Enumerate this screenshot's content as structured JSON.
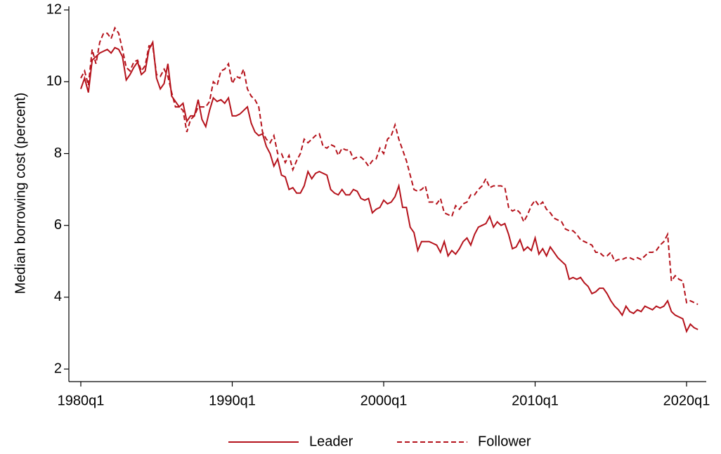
{
  "chart_data": {
    "type": "line",
    "y_label": "Median borrowing cost (percent)",
    "x": [
      "1980q1",
      "1980q2",
      "1980q3",
      "1980q4",
      "1981q1",
      "1981q2",
      "1981q3",
      "1981q4",
      "1982q1",
      "1982q2",
      "1982q3",
      "1982q4",
      "1983q1",
      "1983q2",
      "1983q3",
      "1983q4",
      "1984q1",
      "1984q2",
      "1984q3",
      "1984q4",
      "1985q1",
      "1985q2",
      "1985q3",
      "1985q4",
      "1986q1",
      "1986q2",
      "1986q3",
      "1986q4",
      "1987q1",
      "1987q2",
      "1987q3",
      "1987q4",
      "1988q1",
      "1988q2",
      "1988q3",
      "1988q4",
      "1989q1",
      "1989q2",
      "1989q3",
      "1989q4",
      "1990q1",
      "1990q2",
      "1990q3",
      "1990q4",
      "1991q1",
      "1991q2",
      "1991q3",
      "1991q4",
      "1992q1",
      "1992q2",
      "1992q3",
      "1992q4",
      "1993q1",
      "1993q2",
      "1993q3",
      "1993q4",
      "1994q1",
      "1994q2",
      "1994q3",
      "1994q4",
      "1995q1",
      "1995q2",
      "1995q3",
      "1995q4",
      "1996q1",
      "1996q2",
      "1996q3",
      "1996q4",
      "1997q1",
      "1997q2",
      "1997q3",
      "1997q4",
      "1998q1",
      "1998q2",
      "1998q3",
      "1998q4",
      "1999q1",
      "1999q2",
      "1999q3",
      "1999q4",
      "2000q1",
      "2000q2",
      "2000q3",
      "2000q4",
      "2001q1",
      "2001q2",
      "2001q3",
      "2001q4",
      "2002q1",
      "2002q2",
      "2002q3",
      "2002q4",
      "2003q1",
      "2003q2",
      "2003q3",
      "2003q4",
      "2004q1",
      "2004q2",
      "2004q3",
      "2004q4",
      "2005q1",
      "2005q2",
      "2005q3",
      "2005q4",
      "2006q1",
      "2006q2",
      "2006q3",
      "2006q4",
      "2007q1",
      "2007q2",
      "2007q3",
      "2007q4",
      "2008q1",
      "2008q2",
      "2008q3",
      "2008q4",
      "2009q1",
      "2009q2",
      "2009q3",
      "2009q4",
      "2010q1",
      "2010q2",
      "2010q3",
      "2010q4",
      "2011q1",
      "2011q2",
      "2011q3",
      "2011q4",
      "2012q1",
      "2012q2",
      "2012q3",
      "2012q4",
      "2013q1",
      "2013q2",
      "2013q3",
      "2013q4",
      "2014q1",
      "2014q2",
      "2014q3",
      "2014q4",
      "2015q1",
      "2015q2",
      "2015q3",
      "2015q4",
      "2016q1",
      "2016q2",
      "2016q3",
      "2016q4",
      "2017q1",
      "2017q2",
      "2017q3",
      "2017q4",
      "2018q1",
      "2018q2",
      "2018q3",
      "2018q4",
      "2019q1",
      "2019q2",
      "2019q3",
      "2019q4",
      "2020q1",
      "2020q2",
      "2020q3",
      "2020q4"
    ],
    "xticks": [
      "1980q1",
      "1990q1",
      "2000q1",
      "2010q1",
      "2020q1"
    ],
    "ylim": [
      1.65,
      12.1
    ],
    "yticks": [
      2,
      4,
      6,
      8,
      10,
      12
    ],
    "series": [
      {
        "name": "Leader",
        "color": "#b5121b",
        "dashed": false,
        "values": [
          9.8,
          10.1,
          9.7,
          10.6,
          10.7,
          10.8,
          10.85,
          10.9,
          10.8,
          10.95,
          10.9,
          10.7,
          10.05,
          10.2,
          10.4,
          10.55,
          10.2,
          10.3,
          10.9,
          11.1,
          10.1,
          9.8,
          9.95,
          10.5,
          9.6,
          9.45,
          9.3,
          9.4,
          8.9,
          9.05,
          9.05,
          9.5,
          8.95,
          8.75,
          9.2,
          9.55,
          9.45,
          9.5,
          9.4,
          9.55,
          9.05,
          9.05,
          9.1,
          9.2,
          9.3,
          8.85,
          8.6,
          8.5,
          8.55,
          8.2,
          8.0,
          7.65,
          7.85,
          7.4,
          7.35,
          7.0,
          7.05,
          6.9,
          6.9,
          7.1,
          7.5,
          7.3,
          7.45,
          7.5,
          7.45,
          7.4,
          7.0,
          6.9,
          6.85,
          7.0,
          6.85,
          6.85,
          7.0,
          6.95,
          6.75,
          6.7,
          6.75,
          6.35,
          6.45,
          6.5,
          6.7,
          6.6,
          6.65,
          6.8,
          7.1,
          6.5,
          6.5,
          5.95,
          5.8,
          5.3,
          5.55,
          5.55,
          5.55,
          5.5,
          5.45,
          5.25,
          5.55,
          5.15,
          5.3,
          5.2,
          5.35,
          5.55,
          5.65,
          5.45,
          5.75,
          5.95,
          6.0,
          6.05,
          6.25,
          5.95,
          6.1,
          6.0,
          6.05,
          5.75,
          5.35,
          5.4,
          5.6,
          5.3,
          5.4,
          5.3,
          5.65,
          5.2,
          5.35,
          5.15,
          5.4,
          5.25,
          5.1,
          5.0,
          4.9,
          4.5,
          4.55,
          4.5,
          4.55,
          4.4,
          4.3,
          4.1,
          4.15,
          4.25,
          4.25,
          4.1,
          3.9,
          3.75,
          3.65,
          3.5,
          3.75,
          3.6,
          3.55,
          3.65,
          3.6,
          3.75,
          3.7,
          3.65,
          3.75,
          3.7,
          3.75,
          3.9,
          3.6,
          3.5,
          3.45,
          3.4,
          3.05,
          3.25,
          3.15,
          3.1
        ]
      },
      {
        "name": "Follower",
        "color": "#b5121b",
        "dashed": true,
        "values": [
          10.1,
          10.3,
          9.9,
          10.9,
          10.5,
          11.1,
          11.35,
          11.35,
          11.2,
          11.5,
          11.35,
          10.9,
          10.4,
          10.3,
          10.55,
          10.6,
          10.3,
          10.45,
          11.0,
          11.0,
          10.2,
          10.15,
          10.35,
          10.15,
          9.7,
          9.3,
          9.3,
          9.2,
          8.6,
          8.95,
          9.05,
          9.3,
          9.3,
          9.3,
          9.45,
          10.0,
          9.9,
          10.3,
          10.35,
          10.5,
          9.95,
          10.15,
          10.1,
          10.35,
          9.8,
          9.6,
          9.5,
          9.3,
          8.6,
          8.4,
          8.3,
          8.5,
          8.0,
          8.0,
          7.75,
          7.95,
          7.55,
          7.8,
          8.0,
          8.4,
          8.3,
          8.4,
          8.5,
          8.55,
          8.2,
          8.15,
          8.25,
          8.2,
          7.95,
          8.15,
          8.1,
          8.1,
          7.85,
          7.9,
          7.9,
          7.8,
          7.65,
          7.8,
          7.85,
          8.15,
          8.0,
          8.4,
          8.5,
          8.8,
          8.4,
          8.1,
          7.8,
          7.4,
          7.0,
          6.95,
          7.0,
          7.1,
          6.65,
          6.65,
          6.6,
          6.75,
          6.35,
          6.3,
          6.25,
          6.55,
          6.45,
          6.6,
          6.65,
          6.85,
          6.85,
          7.0,
          7.1,
          7.3,
          7.05,
          7.1,
          7.1,
          7.1,
          7.05,
          6.5,
          6.4,
          6.45,
          6.35,
          6.1,
          6.3,
          6.55,
          6.7,
          6.55,
          6.65,
          6.45,
          6.35,
          6.2,
          6.15,
          6.1,
          5.9,
          5.85,
          5.85,
          5.75,
          5.6,
          5.55,
          5.5,
          5.45,
          5.25,
          5.25,
          5.15,
          5.15,
          5.25,
          5.0,
          5.05,
          5.05,
          5.1,
          5.1,
          5.05,
          5.1,
          5.05,
          5.15,
          5.25,
          5.25,
          5.3,
          5.45,
          5.55,
          5.75,
          4.45,
          4.6,
          4.5,
          4.45,
          3.85,
          3.9,
          3.85,
          3.8
        ]
      }
    ]
  }
}
